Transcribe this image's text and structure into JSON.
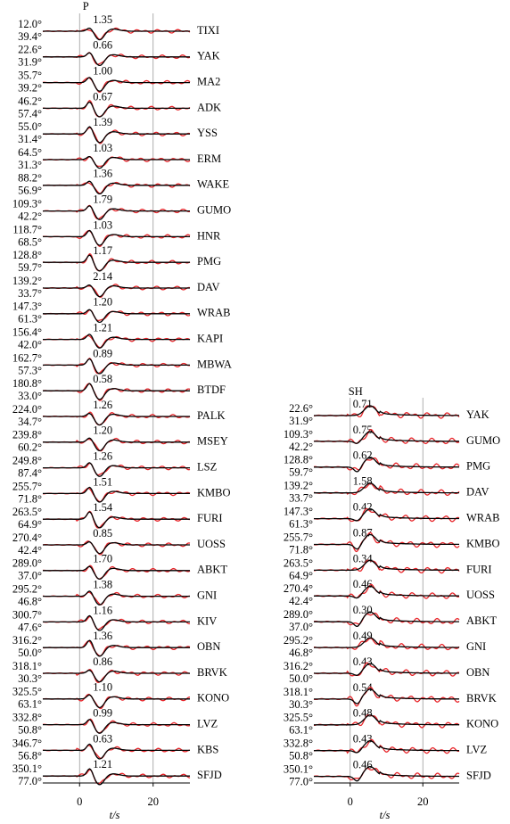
{
  "chart_data": [
    {
      "type": "waveform",
      "title": "P",
      "x_label": "t/s",
      "xlim": [
        -10,
        30
      ],
      "xticks": [
        0,
        20
      ],
      "stations": [
        {
          "name": "TIXI",
          "azimuth": "12.0°",
          "distance": "39.4°",
          "amplitude": "1.35"
        },
        {
          "name": "YAK",
          "azimuth": "22.6°",
          "distance": "31.9°",
          "amplitude": "0.66"
        },
        {
          "name": "MA2",
          "azimuth": "35.7°",
          "distance": "39.2°",
          "amplitude": "1.00"
        },
        {
          "name": "ADK",
          "azimuth": "46.2°",
          "distance": "57.4°",
          "amplitude": "0.67"
        },
        {
          "name": "YSS",
          "azimuth": "55.0°",
          "distance": "31.4°",
          "amplitude": "1.39"
        },
        {
          "name": "ERM",
          "azimuth": "64.5°",
          "distance": "31.3°",
          "amplitude": "1.03"
        },
        {
          "name": "WAKE",
          "azimuth": "88.2°",
          "distance": "56.9°",
          "amplitude": "1.36"
        },
        {
          "name": "GUMO",
          "azimuth": "109.3°",
          "distance": "42.2°",
          "amplitude": "1.79"
        },
        {
          "name": "HNR",
          "azimuth": "118.7°",
          "distance": "68.5°",
          "amplitude": "1.03"
        },
        {
          "name": "PMG",
          "azimuth": "128.8°",
          "distance": "59.7°",
          "amplitude": "1.17"
        },
        {
          "name": "DAV",
          "azimuth": "139.2°",
          "distance": "33.7°",
          "amplitude": "2.14"
        },
        {
          "name": "WRAB",
          "azimuth": "147.3°",
          "distance": "61.3°",
          "amplitude": "1.20"
        },
        {
          "name": "KAPI",
          "azimuth": "156.4°",
          "distance": "42.0°",
          "amplitude": "1.21"
        },
        {
          "name": "MBWA",
          "azimuth": "162.7°",
          "distance": "57.3°",
          "amplitude": "0.89"
        },
        {
          "name": "BTDF",
          "azimuth": "180.8°",
          "distance": "33.0°",
          "amplitude": "0.58"
        },
        {
          "name": "PALK",
          "azimuth": "224.0°",
          "distance": "34.7°",
          "amplitude": "1.26"
        },
        {
          "name": "MSEY",
          "azimuth": "239.8°",
          "distance": "60.2°",
          "amplitude": "1.20"
        },
        {
          "name": "LSZ",
          "azimuth": "249.8°",
          "distance": "87.4°",
          "amplitude": "1.26"
        },
        {
          "name": "KMBO",
          "azimuth": "255.7°",
          "distance": "71.8°",
          "amplitude": "1.51"
        },
        {
          "name": "FURI",
          "azimuth": "263.5°",
          "distance": "64.9°",
          "amplitude": "1.54"
        },
        {
          "name": "UOSS",
          "azimuth": "270.4°",
          "distance": "42.4°",
          "amplitude": "0.85"
        },
        {
          "name": "ABKT",
          "azimuth": "289.0°",
          "distance": "37.0°",
          "amplitude": "1.70"
        },
        {
          "name": "GNI",
          "azimuth": "295.2°",
          "distance": "46.8°",
          "amplitude": "1.38"
        },
        {
          "name": "KIV",
          "azimuth": "300.7°",
          "distance": "47.6°",
          "amplitude": "1.16"
        },
        {
          "name": "OBN",
          "azimuth": "316.2°",
          "distance": "50.0°",
          "amplitude": "1.36"
        },
        {
          "name": "BRVK",
          "azimuth": "318.1°",
          "distance": "30.3°",
          "amplitude": "0.86"
        },
        {
          "name": "KONO",
          "azimuth": "325.5°",
          "distance": "63.1°",
          "amplitude": "1.10"
        },
        {
          "name": "LVZ",
          "azimuth": "332.8°",
          "distance": "50.8°",
          "amplitude": "0.99"
        },
        {
          "name": "KBS",
          "azimuth": "346.7°",
          "distance": "56.8°",
          "amplitude": "0.63"
        },
        {
          "name": "SFJD",
          "azimuth": "350.1°",
          "distance": "77.0°",
          "amplitude": "1.21"
        }
      ]
    },
    {
      "type": "waveform",
      "title": "SH",
      "x_label": "t/s",
      "xlim": [
        -10,
        30
      ],
      "xticks": [
        0,
        20
      ],
      "stations": [
        {
          "name": "YAK",
          "azimuth": "22.6°",
          "distance": "31.9°",
          "amplitude": "0.71"
        },
        {
          "name": "GUMO",
          "azimuth": "109.3°",
          "distance": "42.2°",
          "amplitude": "0.75"
        },
        {
          "name": "PMG",
          "azimuth": "128.8°",
          "distance": "59.7°",
          "amplitude": "0.62"
        },
        {
          "name": "DAV",
          "azimuth": "139.2°",
          "distance": "33.7°",
          "amplitude": "1.58"
        },
        {
          "name": "WRAB",
          "azimuth": "147.3°",
          "distance": "61.3°",
          "amplitude": "0.42"
        },
        {
          "name": "KMBO",
          "azimuth": "255.7°",
          "distance": "71.8°",
          "amplitude": "0.87"
        },
        {
          "name": "FURI",
          "azimuth": "263.5°",
          "distance": "64.9°",
          "amplitude": "0.34"
        },
        {
          "name": "UOSS",
          "azimuth": "270.4°",
          "distance": "42.4°",
          "amplitude": "0.46"
        },
        {
          "name": "ABKT",
          "azimuth": "289.0°",
          "distance": "37.0°",
          "amplitude": "0.30"
        },
        {
          "name": "GNI",
          "azimuth": "295.2°",
          "distance": "46.8°",
          "amplitude": "0.49"
        },
        {
          "name": "OBN",
          "azimuth": "316.2°",
          "distance": "50.0°",
          "amplitude": "0.43"
        },
        {
          "name": "BRVK",
          "azimuth": "318.1°",
          "distance": "30.3°",
          "amplitude": "0.54"
        },
        {
          "name": "KONO",
          "azimuth": "325.5°",
          "distance": "63.1°",
          "amplitude": "0.48"
        },
        {
          "name": "LVZ",
          "azimuth": "332.8°",
          "distance": "50.8°",
          "amplitude": "0.43"
        },
        {
          "name": "SFJD",
          "azimuth": "350.1°",
          "distance": "77.0°",
          "amplitude": "0.46"
        }
      ]
    }
  ]
}
